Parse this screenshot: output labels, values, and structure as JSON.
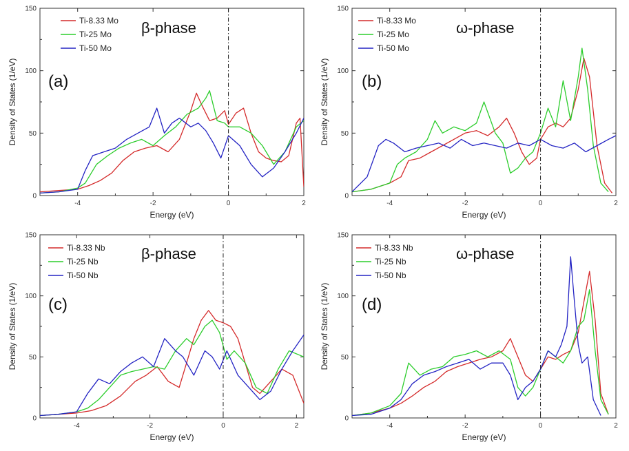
{
  "chart_data": [
    {
      "type": "line",
      "panel_label": "(a)",
      "phase_label": "β-phase",
      "xlabel": "Energy (eV)",
      "ylabel": "Density of States (1/eV)",
      "xlim": [
        -5,
        2
      ],
      "ylim": [
        0,
        150
      ],
      "xticks": [
        "-4",
        "-2",
        "0",
        "2"
      ],
      "yticks": [
        "0",
        "50",
        "100",
        "150"
      ],
      "fermi_line": 0,
      "series": [
        {
          "name": "Ti-8.33 Mo",
          "color": "#d42a2a",
          "x": [
            -5,
            -4.5,
            -4,
            -3.7,
            -3.4,
            -3.1,
            -2.8,
            -2.5,
            -2.2,
            -1.9,
            -1.6,
            -1.3,
            -1,
            -0.85,
            -0.7,
            -0.5,
            -0.3,
            -0.1,
            0,
            0.2,
            0.4,
            0.6,
            0.8,
            1,
            1.2,
            1.4,
            1.6,
            1.8,
            1.9,
            2
          ],
          "y": [
            3,
            4,
            5,
            8,
            12,
            18,
            28,
            35,
            38,
            40,
            35,
            45,
            68,
            82,
            72,
            60,
            62,
            68,
            57,
            66,
            70,
            50,
            35,
            30,
            28,
            27,
            32,
            58,
            62,
            7
          ]
        },
        {
          "name": "Ti-25 Mo",
          "color": "#2ccd2c",
          "x": [
            -5,
            -4.5,
            -4,
            -3.8,
            -3.5,
            -3.2,
            -2.9,
            -2.6,
            -2.3,
            -2,
            -1.7,
            -1.4,
            -1.1,
            -0.8,
            -0.6,
            -0.5,
            -0.3,
            -0.1,
            0,
            0.3,
            0.6,
            0.9,
            1.2,
            1.5,
            1.8,
            2
          ],
          "y": [
            2,
            3,
            6,
            10,
            25,
            32,
            38,
            42,
            45,
            40,
            48,
            55,
            65,
            70,
            78,
            84,
            60,
            58,
            55,
            55,
            50,
            40,
            25,
            35,
            55,
            60
          ]
        },
        {
          "name": "Ti-50 Mo",
          "color": "#2323c3",
          "x": [
            -5,
            -4.5,
            -4,
            -3.8,
            -3.6,
            -3.3,
            -3,
            -2.7,
            -2.4,
            -2.1,
            -1.9,
            -1.7,
            -1.5,
            -1.3,
            -1,
            -0.8,
            -0.6,
            -0.4,
            -0.2,
            0,
            0.3,
            0.6,
            0.9,
            1.2,
            1.5,
            1.8,
            2
          ],
          "y": [
            2,
            3,
            5,
            20,
            32,
            35,
            38,
            45,
            50,
            55,
            70,
            50,
            58,
            62,
            55,
            58,
            52,
            42,
            30,
            48,
            40,
            25,
            15,
            22,
            35,
            50,
            62
          ]
        }
      ]
    },
    {
      "type": "line",
      "panel_label": "(b)",
      "phase_label": "ω-phase",
      "xlabel": "Energy (eV)",
      "ylabel": "Density of States (1/eV)",
      "xlim": [
        -5,
        2
      ],
      "ylim": [
        0,
        150
      ],
      "xticks": [
        "-4",
        "-2",
        "0",
        "2"
      ],
      "yticks": [
        "0",
        "50",
        "100",
        "150"
      ],
      "fermi_line": 0,
      "series": [
        {
          "name": "Ti-8.33 Mo",
          "color": "#d42a2a",
          "x": [
            -5,
            -4.5,
            -4,
            -3.7,
            -3.5,
            -3.2,
            -2.9,
            -2.6,
            -2.3,
            -2,
            -1.7,
            -1.4,
            -1.1,
            -0.9,
            -0.7,
            -0.5,
            -0.3,
            -0.1,
            0,
            0.2,
            0.4,
            0.6,
            0.8,
            1,
            1.15,
            1.3,
            1.5,
            1.7,
            1.9
          ],
          "y": [
            3,
            5,
            10,
            15,
            28,
            30,
            35,
            40,
            45,
            50,
            52,
            48,
            55,
            62,
            50,
            35,
            25,
            30,
            45,
            55,
            58,
            55,
            62,
            85,
            110,
            95,
            40,
            10,
            2
          ]
        },
        {
          "name": "Ti-25 Mo",
          "color": "#2ccd2c",
          "x": [
            -5,
            -4.5,
            -4,
            -3.8,
            -3.6,
            -3.3,
            -3,
            -2.8,
            -2.6,
            -2.3,
            -2,
            -1.7,
            -1.5,
            -1.2,
            -1,
            -0.8,
            -0.6,
            -0.4,
            -0.2,
            0,
            0.2,
            0.4,
            0.6,
            0.8,
            1,
            1.1,
            1.25,
            1.4,
            1.6,
            1.8
          ],
          "y": [
            3,
            5,
            10,
            25,
            30,
            35,
            45,
            60,
            50,
            55,
            52,
            58,
            75,
            50,
            42,
            18,
            22,
            30,
            35,
            50,
            70,
            55,
            92,
            60,
            95,
            118,
            85,
            40,
            10,
            3
          ]
        },
        {
          "name": "Ti-50 Mo",
          "color": "#2323c3",
          "x": [
            -5,
            -4.6,
            -4.3,
            -4.1,
            -3.9,
            -3.6,
            -3.3,
            -3,
            -2.7,
            -2.4,
            -2.1,
            -1.8,
            -1.5,
            -1.2,
            -0.9,
            -0.6,
            -0.3,
            0,
            0.3,
            0.6,
            0.9,
            1.2,
            1.5,
            1.8,
            2
          ],
          "y": [
            3,
            15,
            40,
            45,
            42,
            35,
            38,
            40,
            42,
            38,
            45,
            40,
            42,
            40,
            38,
            42,
            40,
            45,
            40,
            38,
            42,
            35,
            40,
            45,
            48
          ]
        }
      ]
    },
    {
      "type": "line",
      "panel_label": "(c)",
      "phase_label": "β-phase",
      "xlabel": "Energy (eV)",
      "ylabel": "Density of States (1/eV)",
      "xlim": [
        -5,
        2.2
      ],
      "ylim": [
        0,
        150
      ],
      "xticks": [
        "-4",
        "-2",
        "0",
        "2"
      ],
      "yticks": [
        "0",
        "50",
        "100",
        "150"
      ],
      "fermi_line": 0,
      "series": [
        {
          "name": "Ti-8.33 Nb",
          "color": "#d42a2a",
          "x": [
            -5,
            -4.5,
            -4,
            -3.6,
            -3.2,
            -2.8,
            -2.4,
            -2.1,
            -1.8,
            -1.5,
            -1.2,
            -1,
            -0.8,
            -0.6,
            -0.4,
            -0.2,
            0,
            0.2,
            0.4,
            0.6,
            0.8,
            1,
            1.3,
            1.6,
            1.9,
            2.2
          ],
          "y": [
            2,
            3,
            4,
            6,
            10,
            18,
            30,
            35,
            42,
            30,
            25,
            45,
            65,
            80,
            88,
            80,
            78,
            75,
            65,
            45,
            25,
            20,
            30,
            40,
            35,
            12
          ]
        },
        {
          "name": "Ti-25 Nb",
          "color": "#2ccd2c",
          "x": [
            -5,
            -4.5,
            -4,
            -3.7,
            -3.4,
            -3.1,
            -2.8,
            -2.5,
            -2.2,
            -1.9,
            -1.6,
            -1.3,
            -1,
            -0.8,
            -0.5,
            -0.3,
            -0.1,
            0.1,
            0.3,
            0.6,
            0.9,
            1.2,
            1.5,
            1.8,
            2.2
          ],
          "y": [
            2,
            3,
            5,
            8,
            15,
            25,
            35,
            38,
            40,
            42,
            40,
            55,
            65,
            60,
            75,
            80,
            70,
            48,
            55,
            45,
            25,
            20,
            40,
            55,
            50
          ]
        },
        {
          "name": "Ti-50 Nb",
          "color": "#2323c3",
          "x": [
            -5,
            -4.5,
            -4,
            -3.7,
            -3.4,
            -3.1,
            -2.8,
            -2.5,
            -2.2,
            -1.9,
            -1.6,
            -1.3,
            -1.1,
            -0.8,
            -0.5,
            -0.3,
            -0.1,
            0.1,
            0.4,
            0.7,
            1,
            1.3,
            1.6,
            1.9,
            2.2
          ],
          "y": [
            2,
            3,
            5,
            20,
            32,
            28,
            38,
            45,
            50,
            42,
            65,
            55,
            50,
            35,
            55,
            50,
            40,
            55,
            35,
            25,
            15,
            22,
            40,
            55,
            68
          ]
        }
      ]
    },
    {
      "type": "line",
      "panel_label": "(d)",
      "phase_label": "ω-phase",
      "xlabel": "Energy (eV)",
      "ylabel": "Density of States (1/eV)",
      "xlim": [
        -5,
        2
      ],
      "ylim": [
        0,
        150
      ],
      "xticks": [
        "-4",
        "-2",
        "0",
        "2"
      ],
      "yticks": [
        "0",
        "50",
        "100",
        "150"
      ],
      "fermi_line": 0,
      "series": [
        {
          "name": "Ti-8.33 Nb",
          "color": "#d42a2a",
          "x": [
            -5,
            -4.5,
            -4,
            -3.7,
            -3.4,
            -3.1,
            -2.8,
            -2.5,
            -2.2,
            -1.9,
            -1.6,
            -1.3,
            -1,
            -0.8,
            -0.6,
            -0.4,
            -0.2,
            0,
            0.2,
            0.4,
            0.6,
            0.8,
            1,
            1.15,
            1.3,
            1.45,
            1.6,
            1.8
          ],
          "y": [
            2,
            4,
            8,
            12,
            18,
            25,
            30,
            38,
            42,
            45,
            48,
            50,
            55,
            65,
            50,
            35,
            30,
            40,
            50,
            48,
            52,
            55,
            70,
            95,
            120,
            80,
            20,
            3
          ]
        },
        {
          "name": "Ti-25 Nb",
          "color": "#2ccd2c",
          "x": [
            -5,
            -4.5,
            -4,
            -3.7,
            -3.5,
            -3.2,
            -2.9,
            -2.6,
            -2.3,
            -2,
            -1.7,
            -1.4,
            -1.1,
            -0.8,
            -0.6,
            -0.4,
            -0.2,
            0,
            0.2,
            0.4,
            0.6,
            0.8,
            1,
            1.15,
            1.3,
            1.45,
            1.6,
            1.8
          ],
          "y": [
            2,
            4,
            10,
            20,
            45,
            35,
            40,
            42,
            50,
            52,
            55,
            50,
            55,
            48,
            25,
            18,
            25,
            40,
            55,
            50,
            45,
            55,
            75,
            80,
            105,
            55,
            15,
            3
          ]
        },
        {
          "name": "Ti-50 Nb",
          "color": "#2323c3",
          "x": [
            -5,
            -4.5,
            -4,
            -3.7,
            -3.4,
            -3.1,
            -2.8,
            -2.5,
            -2.2,
            -1.9,
            -1.6,
            -1.3,
            -1,
            -0.8,
            -0.6,
            -0.4,
            -0.2,
            0,
            0.2,
            0.4,
            0.55,
            0.7,
            0.8,
            0.9,
            1,
            1.1,
            1.25,
            1.4,
            1.6
          ],
          "y": [
            2,
            3,
            8,
            15,
            28,
            35,
            38,
            42,
            45,
            48,
            40,
            45,
            45,
            35,
            15,
            25,
            30,
            40,
            55,
            50,
            60,
            75,
            132,
            95,
            60,
            45,
            50,
            15,
            2
          ]
        }
      ]
    }
  ]
}
